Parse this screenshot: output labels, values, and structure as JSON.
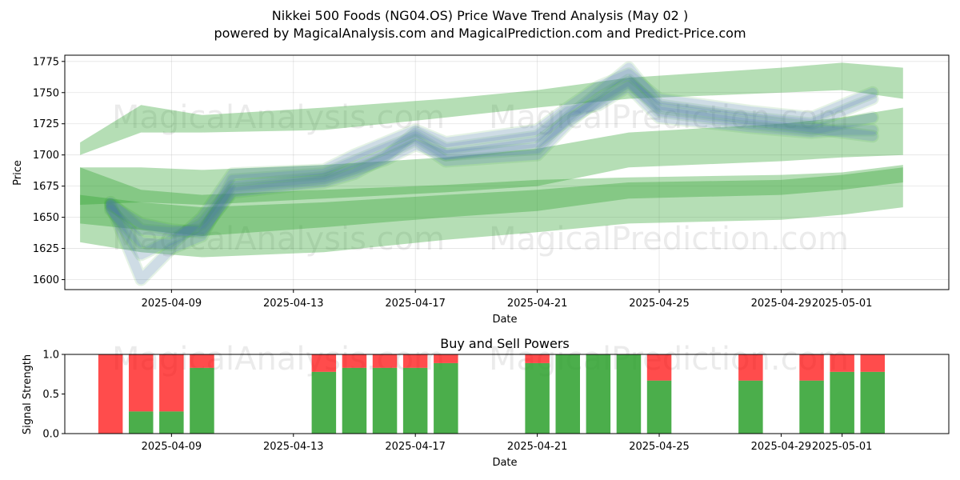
{
  "title": "Nikkei 500 Foods (NG04.OS) Price Wave Trend Analysis (May 02 )",
  "subtitle": "powered by MagicalAnalysis.com and MagicalPrediction.com and Predict-Price.com",
  "watermarks": [
    "MagicalAnalysis.com",
    "MagicalPrediction.com"
  ],
  "colors": {
    "green": "#2ca02c",
    "blue": "#5b5bff",
    "buy": "#2ca02c",
    "sell": "#ff0000"
  },
  "chart_data": [
    {
      "type": "area",
      "name": "price-wave",
      "title": "",
      "xlabel": "Date",
      "ylabel": "Price",
      "ylim": [
        1592,
        1780
      ],
      "xlim": [
        "2025-04-05T12:00",
        "2025-05-04T12:00"
      ],
      "yticks": [
        1600,
        1625,
        1650,
        1675,
        1700,
        1725,
        1750,
        1775
      ],
      "xticks": [
        "2025-04-09",
        "2025-04-13",
        "2025-04-17",
        "2025-04-21",
        "2025-04-25",
        "2025-04-29",
        "2025-05-01"
      ],
      "grid": true,
      "dates": [
        "2025-04-07",
        "2025-04-08",
        "2025-04-09",
        "2025-04-10",
        "2025-04-11",
        "2025-04-14",
        "2025-04-15",
        "2025-04-16",
        "2025-04-17",
        "2025-04-18",
        "2025-04-21",
        "2025-04-22",
        "2025-04-23",
        "2025-04-24",
        "2025-04-25",
        "2025-04-28",
        "2025-04-30",
        "2025-05-01",
        "2025-05-02"
      ],
      "series": [
        {
          "name": "wave-path-1",
          "color": "blue",
          "values": [
            1660,
            1600,
            1625,
            1635,
            1680,
            1685,
            1695,
            1705,
            1715,
            1700,
            1705,
            1730,
            1750,
            1770,
            1740,
            1730,
            1725,
            1735,
            1745
          ]
        },
        {
          "name": "wave-path-2",
          "color": "blue",
          "values": [
            1658,
            1620,
            1632,
            1645,
            1675,
            1682,
            1690,
            1700,
            1712,
            1695,
            1700,
            1725,
            1745,
            1760,
            1735,
            1725,
            1720,
            1725,
            1730
          ]
        },
        {
          "name": "wave-path-3",
          "color": "blue",
          "values": [
            1662,
            1640,
            1638,
            1640,
            1670,
            1678,
            1685,
            1698,
            1718,
            1705,
            1715,
            1735,
            1740,
            1755,
            1730,
            1722,
            1718,
            1720,
            1720
          ]
        },
        {
          "name": "wave-path-4",
          "color": "blue",
          "values": [
            1656,
            1630,
            1628,
            1650,
            1685,
            1688,
            1700,
            1710,
            1720,
            1710,
            1720,
            1738,
            1755,
            1765,
            1745,
            1735,
            1730,
            1740,
            1750
          ]
        },
        {
          "name": "wave-path-5",
          "color": "blue",
          "values": [
            1660,
            1645,
            1640,
            1638,
            1672,
            1680,
            1688,
            1696,
            1708,
            1700,
            1710,
            1728,
            1742,
            1758,
            1738,
            1728,
            1722,
            1718,
            1715
          ]
        }
      ],
      "bands": [
        {
          "name": "trend-band-upper",
          "color": "green",
          "x": [
            "2025-04-06",
            "2025-04-08",
            "2025-04-10",
            "2025-04-14",
            "2025-04-18",
            "2025-04-21",
            "2025-04-24",
            "2025-04-29",
            "2025-05-01",
            "2025-05-03"
          ],
          "low": [
            1700,
            1718,
            1718,
            1720,
            1730,
            1738,
            1745,
            1750,
            1752,
            1745
          ],
          "high": [
            1710,
            1740,
            1732,
            1738,
            1745,
            1752,
            1762,
            1770,
            1774,
            1770
          ]
        },
        {
          "name": "trend-band-middle",
          "color": "green",
          "x": [
            "2025-04-06",
            "2025-04-08",
            "2025-04-10",
            "2025-04-14",
            "2025-04-18",
            "2025-04-21",
            "2025-04-24",
            "2025-04-29",
            "2025-05-01",
            "2025-05-03"
          ],
          "low": [
            1660,
            1662,
            1660,
            1665,
            1670,
            1675,
            1690,
            1695,
            1698,
            1700
          ],
          "high": [
            1690,
            1690,
            1688,
            1692,
            1698,
            1705,
            1718,
            1725,
            1730,
            1738
          ]
        },
        {
          "name": "trend-band-lower",
          "color": "green",
          "x": [
            "2025-04-06",
            "2025-04-08",
            "2025-04-10",
            "2025-04-14",
            "2025-04-18",
            "2025-04-21",
            "2025-04-24",
            "2025-04-29",
            "2025-05-01",
            "2025-05-03"
          ],
          "low": [
            1630,
            1622,
            1618,
            1622,
            1632,
            1638,
            1645,
            1648,
            1652,
            1658
          ],
          "high": [
            1690,
            1672,
            1668,
            1672,
            1676,
            1680,
            1682,
            1684,
            1686,
            1692
          ]
        },
        {
          "name": "trend-band-core",
          "color": "green",
          "x": [
            "2025-04-06",
            "2025-04-08",
            "2025-04-10",
            "2025-04-14",
            "2025-04-18",
            "2025-04-21",
            "2025-04-24",
            "2025-04-29",
            "2025-05-01",
            "2025-05-03"
          ],
          "low": [
            1645,
            1640,
            1635,
            1642,
            1650,
            1655,
            1665,
            1668,
            1672,
            1678
          ],
          "high": [
            1668,
            1662,
            1658,
            1662,
            1668,
            1672,
            1678,
            1680,
            1684,
            1690
          ]
        }
      ]
    },
    {
      "type": "bar",
      "name": "buy-sell-powers",
      "title": "Buy and Sell Powers",
      "xlabel": "Date",
      "ylabel": "Signal Strength",
      "ylim": [
        0,
        1
      ],
      "yticks": [
        "0.0",
        "0.5",
        "1.0"
      ],
      "xlim": [
        "2025-04-05T12:00",
        "2025-05-04T12:00"
      ],
      "xticks": [
        "2025-04-09",
        "2025-04-13",
        "2025-04-17",
        "2025-04-21",
        "2025-04-25",
        "2025-04-29",
        "2025-05-01"
      ],
      "categories": [
        "2025-04-07",
        "2025-04-08",
        "2025-04-09",
        "2025-04-10",
        "2025-04-14",
        "2025-04-15",
        "2025-04-16",
        "2025-04-17",
        "2025-04-18",
        "2025-04-21",
        "2025-04-22",
        "2025-04-23",
        "2025-04-24",
        "2025-04-25",
        "2025-04-28",
        "2025-04-30",
        "2025-05-01",
        "2025-05-02"
      ],
      "series": [
        {
          "name": "Buy",
          "color": "buy",
          "values": [
            0,
            0.28,
            0.28,
            0.83,
            0.78,
            0.83,
            0.83,
            0.83,
            0.89,
            0.89,
            1,
            1,
            1,
            0.67,
            0.67,
            0.67,
            0.78,
            0.78
          ]
        },
        {
          "name": "Sell",
          "color": "sell",
          "values": [
            1,
            0.72,
            0.72,
            0.17,
            0.22,
            0.17,
            0.17,
            0.17,
            0.11,
            0.11,
            0,
            0,
            0,
            0.33,
            0.33,
            0.33,
            0.22,
            0.22
          ]
        }
      ]
    }
  ]
}
